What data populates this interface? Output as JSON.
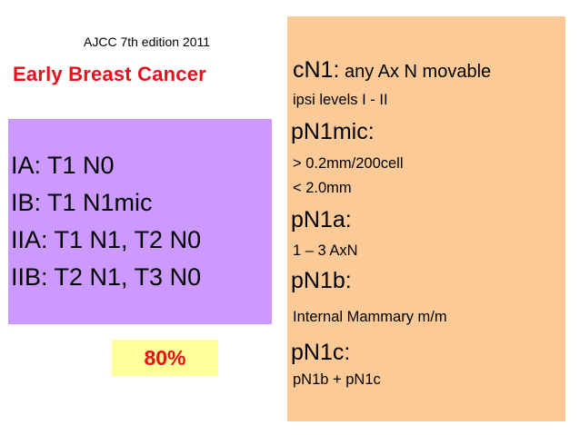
{
  "edition": "AJCC 7th edition 2011",
  "title": "Early Breast Cancer",
  "stages": [
    "IA:  T1 N0",
    "IB:  T1 N1mic",
    "IIA: T1 N1, T2 N0",
    "IIB: T2 N1, T3 N0"
  ],
  "survival_percent": "80%",
  "right_panel": {
    "cn1_label": "cN1:",
    "cn1_text": " any Ax N movable",
    "cn1_sub": "ipsi levels I - II",
    "pn1mic": "pN1mic:",
    "pn1mic_line1": "> 0.2mm/200cell",
    "pn1mic_line2": "< 2.0mm",
    "pn1a": "pN1a:",
    "pn1a_text": "1 – 3 AxN",
    "pn1b": "pN1b:",
    "pn1b_text": "Internal Mammary m/m",
    "pn1c": "pN1c:",
    "pn1c_text": "pN1b + pN1c"
  },
  "colors": {
    "title_red": "#e8101a",
    "stage_box": "#cc99ff",
    "percent_box": "#ffff99",
    "right_panel": "#fcca97"
  }
}
